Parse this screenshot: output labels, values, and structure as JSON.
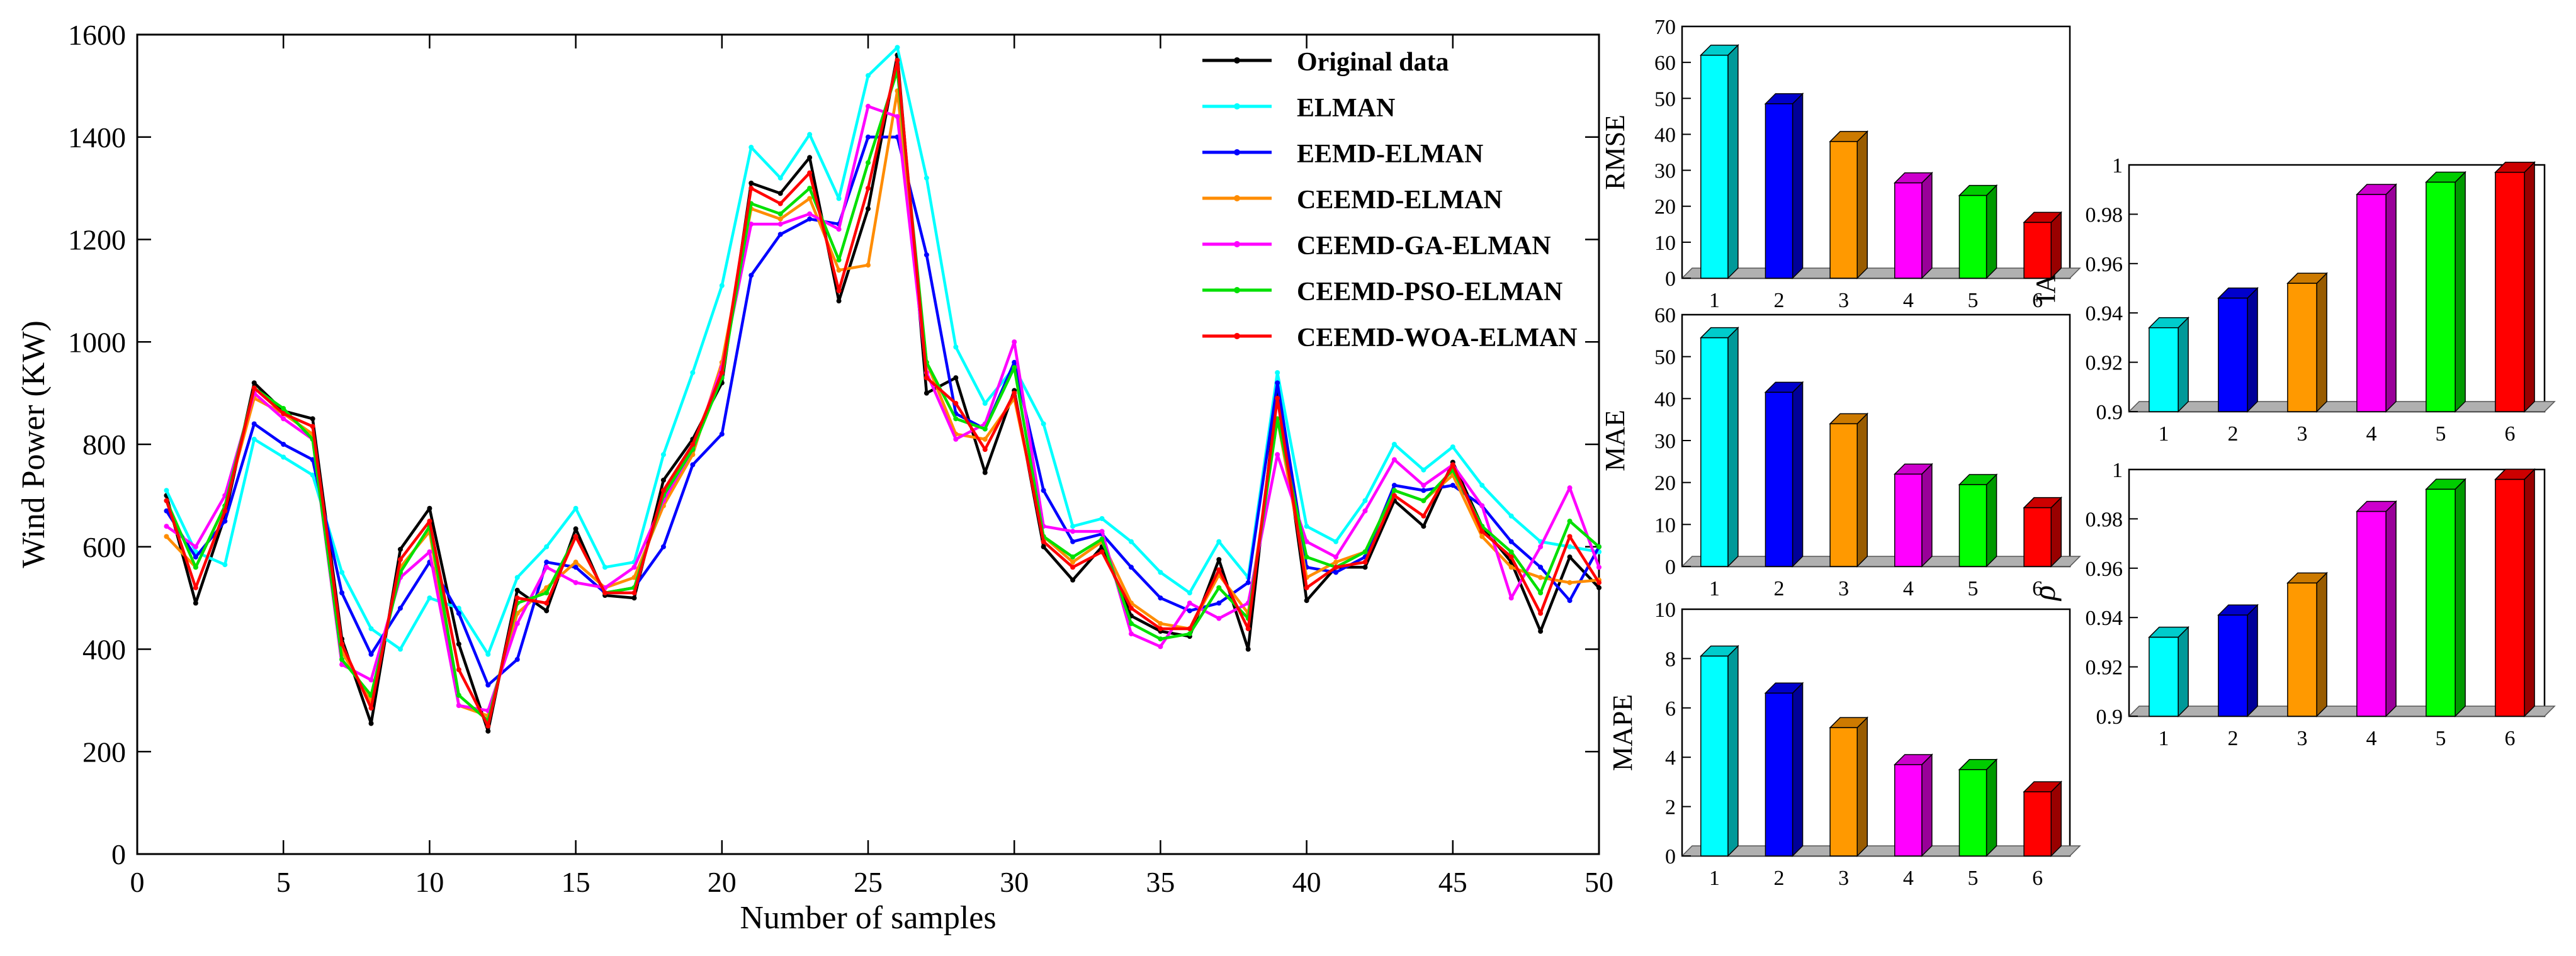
{
  "chart_data": [
    {
      "type": "line",
      "xlabel": "Number of samples",
      "ylabel": "Wind Power (KW)",
      "xlim": [
        0,
        50
      ],
      "ylim": [
        0,
        1600
      ],
      "xticks": [
        0,
        5,
        10,
        15,
        20,
        25,
        30,
        35,
        40,
        45,
        50
      ],
      "yticks": [
        0,
        200,
        400,
        600,
        800,
        1000,
        1200,
        1400,
        1600
      ],
      "legend_position": "top-right",
      "x": [
        1,
        2,
        3,
        4,
        5,
        6,
        7,
        8,
        9,
        10,
        11,
        12,
        13,
        14,
        15,
        16,
        17,
        18,
        19,
        20,
        21,
        22,
        23,
        24,
        25,
        26,
        27,
        28,
        29,
        30,
        31,
        32,
        33,
        34,
        35,
        36,
        37,
        38,
        39,
        40,
        41,
        42,
        43,
        44,
        45,
        46,
        47,
        48,
        49,
        50
      ],
      "series": [
        {
          "name": "Original data",
          "color": "#000000",
          "values": [
            700,
            490,
            660,
            920,
            865,
            850,
            420,
            255,
            595,
            675,
            410,
            240,
            515,
            475,
            635,
            505,
            500,
            730,
            810,
            920,
            1310,
            1290,
            1360,
            1080,
            1260,
            1560,
            900,
            930,
            745,
            905,
            600,
            535,
            600,
            465,
            435,
            425,
            575,
            400,
            910,
            495,
            560,
            560,
            690,
            640,
            765,
            640,
            570,
            435,
            580,
            520
          ]
        },
        {
          "name": "ELMAN",
          "color": "#00ffff",
          "values": [
            710,
            590,
            565,
            810,
            775,
            740,
            550,
            440,
            400,
            500,
            480,
            390,
            540,
            600,
            675,
            560,
            570,
            780,
            940,
            1110,
            1380,
            1320,
            1405,
            1280,
            1520,
            1575,
            1320,
            990,
            880,
            950,
            840,
            640,
            655,
            610,
            550,
            510,
            610,
            540,
            940,
            640,
            610,
            690,
            800,
            750,
            795,
            720,
            660,
            610,
            600,
            590
          ]
        },
        {
          "name": "EEMD-ELMAN",
          "color": "#0000ff",
          "values": [
            670,
            580,
            650,
            840,
            800,
            770,
            510,
            390,
            480,
            570,
            470,
            330,
            380,
            570,
            560,
            510,
            520,
            600,
            760,
            820,
            1130,
            1210,
            1240,
            1230,
            1400,
            1400,
            1170,
            860,
            830,
            960,
            710,
            610,
            625,
            560,
            500,
            475,
            490,
            530,
            920,
            560,
            550,
            580,
            720,
            710,
            720,
            680,
            610,
            560,
            495,
            600
          ]
        },
        {
          "name": "CEEMD-ELMAN",
          "color": "#ff8c00",
          "values": [
            620,
            560,
            680,
            890,
            860,
            820,
            395,
            300,
            560,
            630,
            290,
            270,
            470,
            520,
            570,
            520,
            540,
            680,
            780,
            960,
            1260,
            1240,
            1280,
            1140,
            1150,
            1490,
            960,
            820,
            810,
            890,
            620,
            570,
            610,
            490,
            450,
            440,
            545,
            470,
            850,
            540,
            570,
            590,
            710,
            690,
            740,
            620,
            560,
            540,
            530,
            535
          ]
        },
        {
          "name": "CEEMD-GA-ELMAN",
          "color": "#ff00ff",
          "values": [
            640,
            600,
            700,
            900,
            850,
            810,
            370,
            340,
            540,
            590,
            290,
            280,
            450,
            560,
            530,
            520,
            560,
            690,
            790,
            950,
            1230,
            1230,
            1250,
            1220,
            1460,
            1440,
            940,
            810,
            840,
            1000,
            640,
            630,
            630,
            430,
            405,
            490,
            460,
            490,
            780,
            610,
            580,
            670,
            770,
            720,
            760,
            680,
            500,
            600,
            715,
            560
          ]
        },
        {
          "name": "CEEMD-PSO-ELMAN",
          "color": "#00e000",
          "values": [
            690,
            560,
            680,
            910,
            870,
            810,
            380,
            310,
            550,
            640,
            310,
            260,
            490,
            510,
            620,
            510,
            520,
            700,
            790,
            930,
            1270,
            1250,
            1300,
            1160,
            1350,
            1530,
            960,
            850,
            830,
            950,
            620,
            580,
            615,
            450,
            420,
            430,
            520,
            460,
            850,
            580,
            560,
            590,
            710,
            690,
            750,
            640,
            590,
            510,
            650,
            600
          ]
        },
        {
          "name": "CEEMD-WOA-ELMAN",
          "color": "#ff0000",
          "values": [
            690,
            520,
            670,
            910,
            860,
            835,
            410,
            285,
            575,
            650,
            360,
            250,
            500,
            490,
            620,
            510,
            510,
            710,
            800,
            940,
            1300,
            1270,
            1330,
            1100,
            1300,
            1550,
            930,
            880,
            790,
            900,
            610,
            560,
            590,
            480,
            440,
            440,
            555,
            440,
            890,
            520,
            560,
            570,
            700,
            660,
            760,
            630,
            580,
            470,
            620,
            530
          ]
        }
      ]
    },
    {
      "type": "bar",
      "ylabel": "RMSE",
      "categories": [
        "1",
        "2",
        "3",
        "4",
        "5",
        "6"
      ],
      "values": [
        62,
        48.5,
        38,
        26.5,
        23,
        15.5
      ],
      "ylim": [
        0,
        70
      ],
      "yticks": [
        0,
        10,
        20,
        30,
        40,
        50,
        60,
        70
      ],
      "bar_colors": [
        "#00ffff",
        "#0000ff",
        "#ff9900",
        "#ff00ff",
        "#00ff00",
        "#ff0000"
      ]
    },
    {
      "type": "bar",
      "ylabel": "MAE",
      "categories": [
        "1",
        "2",
        "3",
        "4",
        "5",
        "6"
      ],
      "values": [
        54.5,
        41.5,
        34,
        22,
        19.5,
        14
      ],
      "ylim": [
        0,
        60
      ],
      "yticks": [
        0,
        10,
        20,
        30,
        40,
        50,
        60
      ],
      "bar_colors": [
        "#00ffff",
        "#0000ff",
        "#ff9900",
        "#ff00ff",
        "#00ff00",
        "#ff0000"
      ]
    },
    {
      "type": "bar",
      "ylabel": "MAPE",
      "categories": [
        "1",
        "2",
        "3",
        "4",
        "5",
        "6"
      ],
      "values": [
        8.1,
        6.6,
        5.2,
        3.7,
        3.5,
        2.6
      ],
      "ylim": [
        0,
        10
      ],
      "yticks": [
        0,
        2,
        4,
        6,
        8,
        10
      ],
      "bar_colors": [
        "#00ffff",
        "#0000ff",
        "#ff9900",
        "#ff00ff",
        "#00ff00",
        "#ff0000"
      ]
    },
    {
      "type": "bar",
      "ylabel": "IA",
      "categories": [
        "1",
        "2",
        "3",
        "4",
        "5",
        "6"
      ],
      "values": [
        0.934,
        0.946,
        0.952,
        0.988,
        0.993,
        0.997
      ],
      "ylim": [
        0.9,
        1
      ],
      "yticks": [
        0.9,
        0.92,
        0.94,
        0.96,
        0.98,
        1
      ],
      "ytick_labels": [
        "0.9",
        "0.92",
        "0.94",
        "0.96",
        "0.98",
        "1"
      ],
      "bar_colors": [
        "#00ffff",
        "#0000ff",
        "#ff9900",
        "#ff00ff",
        "#00ff00",
        "#ff0000"
      ]
    },
    {
      "type": "bar",
      "ylabel": "ρ",
      "categories": [
        "1",
        "2",
        "3",
        "4",
        "5",
        "6"
      ],
      "values": [
        0.932,
        0.941,
        0.954,
        0.983,
        0.992,
        0.996
      ],
      "ylim": [
        0.9,
        1
      ],
      "yticks": [
        0.9,
        0.92,
        0.94,
        0.96,
        0.98,
        1
      ],
      "ytick_labels": [
        "0.9",
        "0.92",
        "0.94",
        "0.96",
        "0.98",
        "1"
      ],
      "bar_colors": [
        "#00ffff",
        "#0000ff",
        "#ff9900",
        "#ff00ff",
        "#00ff00",
        "#ff0000"
      ]
    }
  ]
}
